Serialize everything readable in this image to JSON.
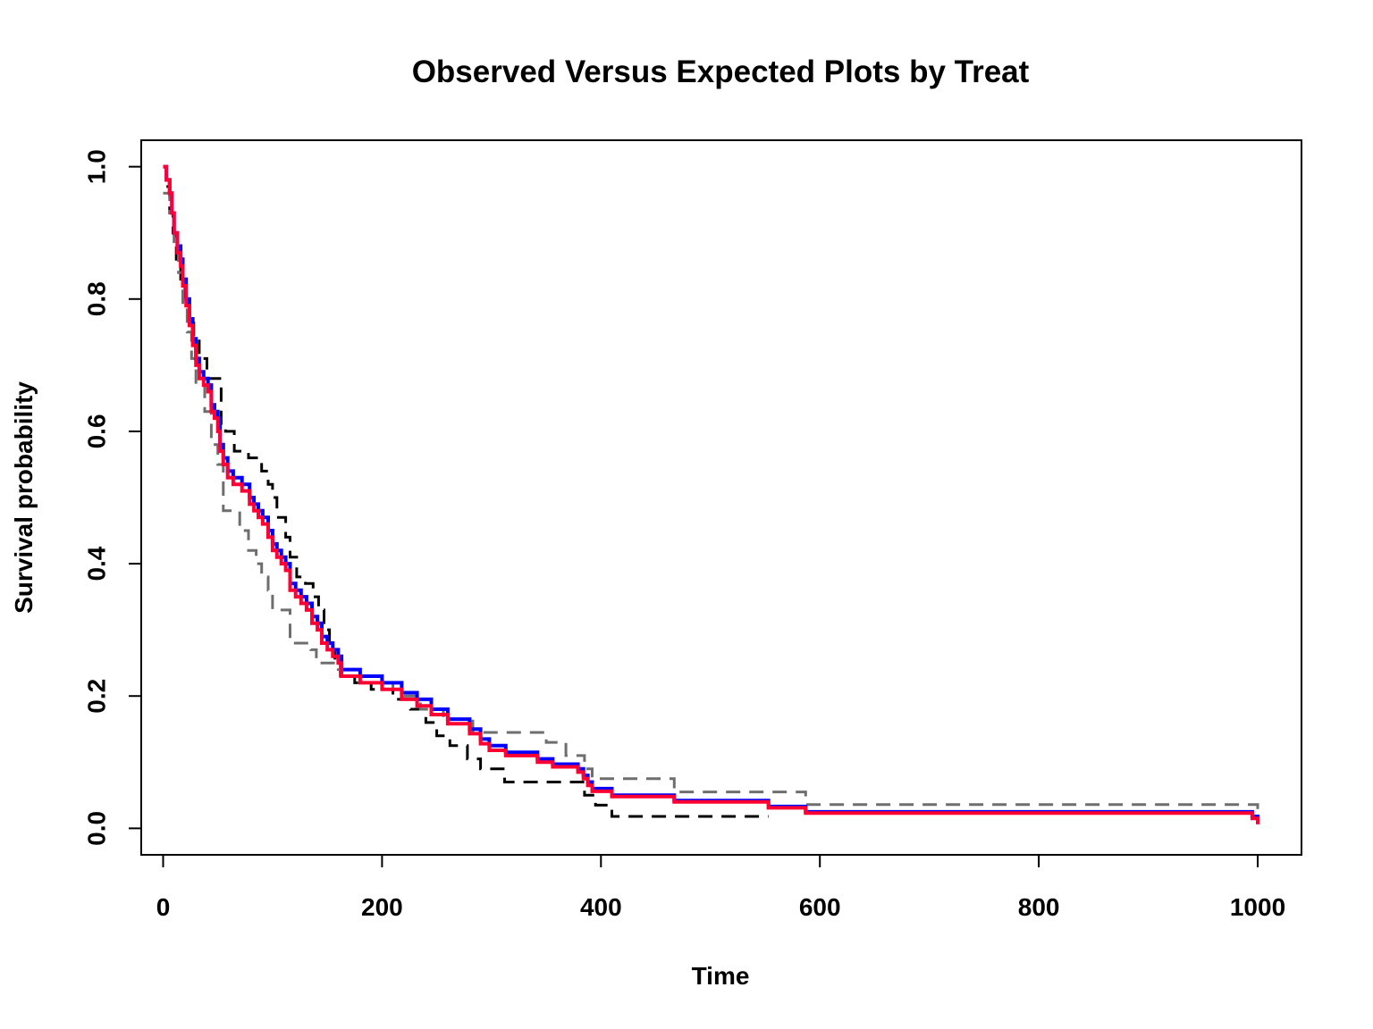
{
  "chart_data": {
    "type": "line",
    "title": "Observed Versus Expected Plots by Treat",
    "xlabel": "Time",
    "ylabel": "Survival probability",
    "xlim": [
      -20,
      1040
    ],
    "ylim": [
      -0.04,
      1.04
    ],
    "x_ticks": [
      0,
      200,
      400,
      600,
      800,
      1000
    ],
    "y_ticks": [
      0.0,
      0.2,
      0.4,
      0.6,
      0.8,
      1.0
    ],
    "x_tick_labels": [
      "0",
      "200",
      "400",
      "600",
      "800",
      "1000"
    ],
    "y_tick_labels": [
      "0.0",
      "0.2",
      "0.4",
      "0.6",
      "0.8",
      "1.0"
    ],
    "grid": false,
    "legend": "none",
    "series": [
      {
        "color": "#000000",
        "style": "dashed",
        "step": true,
        "points": [
          [
            0,
            1.0
          ],
          [
            3,
            0.97
          ],
          [
            6,
            0.93
          ],
          [
            9,
            0.9
          ],
          [
            12,
            0.86
          ],
          [
            16,
            0.83
          ],
          [
            20,
            0.8
          ],
          [
            24,
            0.77
          ],
          [
            28,
            0.74
          ],
          [
            33,
            0.71
          ],
          [
            40,
            0.68
          ],
          [
            53,
            0.61
          ],
          [
            57,
            0.6
          ],
          [
            65,
            0.57
          ],
          [
            78,
            0.56
          ],
          [
            90,
            0.54
          ],
          [
            96,
            0.52
          ],
          [
            100,
            0.5
          ],
          [
            104,
            0.47
          ],
          [
            112,
            0.44
          ],
          [
            116,
            0.41
          ],
          [
            122,
            0.38
          ],
          [
            130,
            0.37
          ],
          [
            137,
            0.35
          ],
          [
            142,
            0.33
          ],
          [
            147,
            0.3
          ],
          [
            152,
            0.27
          ],
          [
            157,
            0.25
          ],
          [
            162,
            0.23
          ],
          [
            175,
            0.22
          ],
          [
            190,
            0.21
          ],
          [
            210,
            0.195
          ],
          [
            226,
            0.18
          ],
          [
            240,
            0.16
          ],
          [
            250,
            0.14
          ],
          [
            262,
            0.125
          ],
          [
            278,
            0.105
          ],
          [
            290,
            0.09
          ],
          [
            312,
            0.07
          ],
          [
            366,
            0.07
          ],
          [
            385,
            0.05
          ],
          [
            395,
            0.035
          ],
          [
            410,
            0.018
          ],
          [
            553,
            0.018
          ]
        ]
      },
      {
        "color": "#6e6e6e",
        "style": "dashed",
        "step": true,
        "points": [
          [
            0,
            0.96
          ],
          [
            6,
            0.93
          ],
          [
            10,
            0.88
          ],
          [
            14,
            0.84
          ],
          [
            18,
            0.79
          ],
          [
            22,
            0.75
          ],
          [
            26,
            0.71
          ],
          [
            30,
            0.67
          ],
          [
            38,
            0.63
          ],
          [
            44,
            0.58
          ],
          [
            50,
            0.55
          ],
          [
            55,
            0.48
          ],
          [
            62,
            0.48
          ],
          [
            70,
            0.45
          ],
          [
            78,
            0.42
          ],
          [
            85,
            0.4
          ],
          [
            90,
            0.38
          ],
          [
            96,
            0.36
          ],
          [
            100,
            0.33
          ],
          [
            110,
            0.33
          ],
          [
            116,
            0.28
          ],
          [
            135,
            0.27
          ],
          [
            140,
            0.25
          ],
          [
            160,
            0.24
          ],
          [
            175,
            0.23
          ],
          [
            190,
            0.22
          ],
          [
            210,
            0.21
          ],
          [
            220,
            0.2
          ],
          [
            235,
            0.18
          ],
          [
            256,
            0.165
          ],
          [
            283,
            0.145
          ],
          [
            318,
            0.145
          ],
          [
            350,
            0.13
          ],
          [
            368,
            0.11
          ],
          [
            385,
            0.09
          ],
          [
            392,
            0.075
          ],
          [
            467,
            0.055
          ],
          [
            587,
            0.036
          ],
          [
            993,
            0.036
          ],
          [
            1000,
            0.018
          ]
        ]
      },
      {
        "color": "#0000ff",
        "style": "solid",
        "step": true,
        "points": [
          [
            0,
            1.0
          ],
          [
            3,
            0.98
          ],
          [
            6,
            0.96
          ],
          [
            8,
            0.93
          ],
          [
            10,
            0.9
          ],
          [
            13,
            0.88
          ],
          [
            16,
            0.86
          ],
          [
            18,
            0.83
          ],
          [
            21,
            0.8
          ],
          [
            24,
            0.77
          ],
          [
            27,
            0.74
          ],
          [
            30,
            0.71
          ],
          [
            33,
            0.69
          ],
          [
            37,
            0.68
          ],
          [
            41,
            0.67
          ],
          [
            44,
            0.64
          ],
          [
            47,
            0.63
          ],
          [
            50,
            0.62
          ],
          [
            52,
            0.58
          ],
          [
            55,
            0.56
          ],
          [
            59,
            0.54
          ],
          [
            64,
            0.53
          ],
          [
            72,
            0.52
          ],
          [
            79,
            0.5
          ],
          [
            83,
            0.49
          ],
          [
            87,
            0.48
          ],
          [
            91,
            0.47
          ],
          [
            96,
            0.45
          ],
          [
            100,
            0.43
          ],
          [
            104,
            0.42
          ],
          [
            108,
            0.41
          ],
          [
            112,
            0.4
          ],
          [
            116,
            0.37
          ],
          [
            121,
            0.36
          ],
          [
            126,
            0.35
          ],
          [
            131,
            0.34
          ],
          [
            136,
            0.32
          ],
          [
            141,
            0.31
          ],
          [
            145,
            0.29
          ],
          [
            150,
            0.28
          ],
          [
            155,
            0.27
          ],
          [
            160,
            0.26
          ],
          [
            163,
            0.24
          ],
          [
            180,
            0.23
          ],
          [
            200,
            0.22
          ],
          [
            218,
            0.205
          ],
          [
            232,
            0.195
          ],
          [
            245,
            0.18
          ],
          [
            260,
            0.165
          ],
          [
            280,
            0.15
          ],
          [
            290,
            0.135
          ],
          [
            298,
            0.125
          ],
          [
            313,
            0.115
          ],
          [
            342,
            0.105
          ],
          [
            356,
            0.097
          ],
          [
            379,
            0.09
          ],
          [
            384,
            0.08
          ],
          [
            388,
            0.07
          ],
          [
            392,
            0.06
          ],
          [
            410,
            0.05
          ],
          [
            467,
            0.042
          ],
          [
            553,
            0.033
          ],
          [
            587,
            0.025
          ],
          [
            990,
            0.025
          ],
          [
            995,
            0.018
          ],
          [
            1000,
            0.01
          ]
        ]
      },
      {
        "color": "#ff0033",
        "style": "solid",
        "step": true,
        "points": [
          [
            0,
            1.0
          ],
          [
            3,
            0.98
          ],
          [
            6,
            0.96
          ],
          [
            8,
            0.93
          ],
          [
            10,
            0.9
          ],
          [
            13,
            0.87
          ],
          [
            16,
            0.85
          ],
          [
            18,
            0.82
          ],
          [
            21,
            0.79
          ],
          [
            24,
            0.76
          ],
          [
            27,
            0.73
          ],
          [
            30,
            0.7
          ],
          [
            33,
            0.68
          ],
          [
            37,
            0.67
          ],
          [
            41,
            0.66
          ],
          [
            44,
            0.63
          ],
          [
            47,
            0.62
          ],
          [
            50,
            0.6
          ],
          [
            52,
            0.57
          ],
          [
            55,
            0.55
          ],
          [
            59,
            0.53
          ],
          [
            64,
            0.52
          ],
          [
            72,
            0.51
          ],
          [
            79,
            0.49
          ],
          [
            83,
            0.48
          ],
          [
            87,
            0.47
          ],
          [
            91,
            0.46
          ],
          [
            96,
            0.44
          ],
          [
            100,
            0.42
          ],
          [
            104,
            0.41
          ],
          [
            108,
            0.4
          ],
          [
            112,
            0.39
          ],
          [
            116,
            0.36
          ],
          [
            121,
            0.35
          ],
          [
            126,
            0.34
          ],
          [
            131,
            0.33
          ],
          [
            136,
            0.31
          ],
          [
            141,
            0.3
          ],
          [
            145,
            0.28
          ],
          [
            150,
            0.27
          ],
          [
            155,
            0.26
          ],
          [
            160,
            0.25
          ],
          [
            163,
            0.23
          ],
          [
            180,
            0.22
          ],
          [
            200,
            0.21
          ],
          [
            218,
            0.195
          ],
          [
            232,
            0.185
          ],
          [
            245,
            0.172
          ],
          [
            260,
            0.158
          ],
          [
            280,
            0.143
          ],
          [
            290,
            0.128
          ],
          [
            298,
            0.118
          ],
          [
            313,
            0.11
          ],
          [
            342,
            0.1
          ],
          [
            356,
            0.093
          ],
          [
            379,
            0.085
          ],
          [
            384,
            0.075
          ],
          [
            388,
            0.065
          ],
          [
            392,
            0.056
          ],
          [
            410,
            0.048
          ],
          [
            467,
            0.04
          ],
          [
            553,
            0.031
          ],
          [
            587,
            0.023
          ],
          [
            990,
            0.023
          ],
          [
            995,
            0.015
          ],
          [
            1000,
            0.006
          ]
        ]
      }
    ]
  }
}
